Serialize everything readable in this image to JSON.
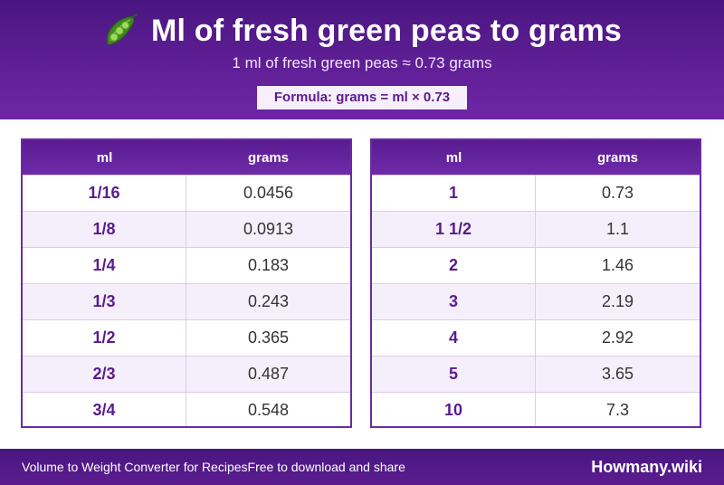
{
  "header": {
    "icon": "pea-pod-icon",
    "title": "Ml of fresh green peas to grams",
    "subtitle": "1 ml of fresh green peas ≈ 0.73 grams",
    "formula": "Formula: grams = ml × 0.73"
  },
  "tables": {
    "left": {
      "columns": [
        "ml",
        "grams"
      ],
      "rows": [
        {
          "ml": "1/16",
          "grams": "0.0456"
        },
        {
          "ml": "1/8",
          "grams": "0.0913"
        },
        {
          "ml": "1/4",
          "grams": "0.183"
        },
        {
          "ml": "1/3",
          "grams": "0.243"
        },
        {
          "ml": "1/2",
          "grams": "0.365"
        },
        {
          "ml": "2/3",
          "grams": "0.487"
        },
        {
          "ml": "3/4",
          "grams": "0.548"
        }
      ]
    },
    "right": {
      "columns": [
        "ml",
        "grams"
      ],
      "rows": [
        {
          "ml": "1",
          "grams": "0.73"
        },
        {
          "ml": "1 1/2",
          "grams": "1.1"
        },
        {
          "ml": "2",
          "grams": "1.46"
        },
        {
          "ml": "3",
          "grams": "2.19"
        },
        {
          "ml": "4",
          "grams": "2.92"
        },
        {
          "ml": "5",
          "grams": "3.65"
        },
        {
          "ml": "10",
          "grams": "7.3"
        }
      ]
    }
  },
  "footer": {
    "left_text": "Volume to Weight Converter for RecipesFree to download and share",
    "brand": "Howmany.wiki"
  },
  "colors": {
    "brand_purple": "#5f1f96",
    "accent_text": "#5b1a8f",
    "row_alt": "#f5effb"
  }
}
